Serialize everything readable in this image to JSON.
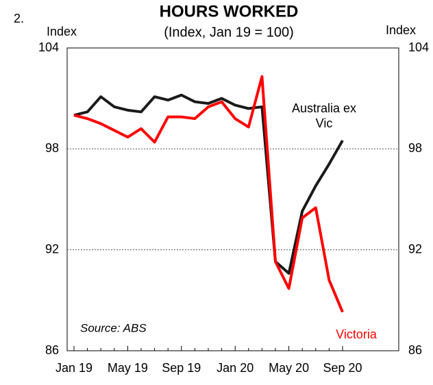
{
  "label": "2.",
  "chart_data": {
    "type": "line",
    "title": "HOURS WORKED",
    "subtitle": "(Index, Jan 19 = 100)",
    "y_label": "Index",
    "y2_label": "Index",
    "source": "Source: ABS",
    "categories": [
      "Jan 19",
      null,
      null,
      null,
      "May 19",
      null,
      null,
      null,
      "Sep 19",
      null,
      null,
      null,
      "Jan 20",
      null,
      null,
      null,
      "May 20",
      null,
      null,
      null,
      "Sep 20"
    ],
    "series": [
      {
        "name": "Australia ex Vic",
        "color": "#1a1a1a",
        "values": [
          100.0,
          100.2,
          101.1,
          100.5,
          100.3,
          100.2,
          101.1,
          100.9,
          101.2,
          100.8,
          100.7,
          101.0,
          100.6,
          100.4,
          100.5,
          91.3,
          90.6,
          94.3,
          95.8,
          97.1,
          98.5
        ]
      },
      {
        "name": "Victoria",
        "color": "#ff0000",
        "values": [
          100.0,
          99.8,
          99.5,
          99.1,
          98.7,
          99.2,
          98.4,
          99.9,
          99.9,
          99.8,
          100.5,
          100.8,
          99.8,
          99.3,
          102.3,
          91.3,
          89.7,
          93.9,
          94.5,
          90.2,
          88.3
        ]
      }
    ],
    "ylim": [
      86,
      104
    ],
    "yticks": [
      86,
      92,
      98,
      104
    ],
    "grid": true
  }
}
